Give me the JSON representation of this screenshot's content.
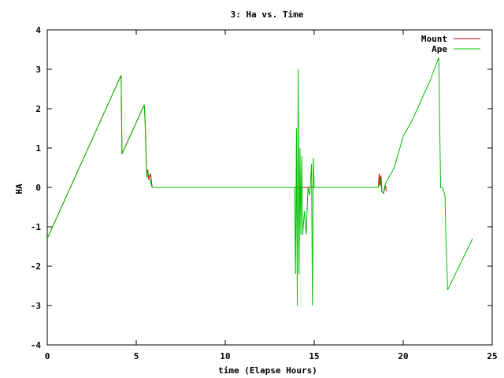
{
  "chart_data": {
    "type": "line",
    "title": "3: Ha vs. Time",
    "xlabel": "time (Elapse Hours)",
    "ylabel": "HA",
    "xlim": [
      0,
      25
    ],
    "ylim": [
      -4,
      4
    ],
    "xticks": [
      "0",
      "5",
      "10",
      "15",
      "20",
      "25"
    ],
    "yticks": [
      "-4",
      "-3",
      "-2",
      "-1",
      "0",
      "1",
      "2",
      "3",
      "4"
    ],
    "grid": false,
    "legend_position": "top-right",
    "series": [
      {
        "name": "Mount",
        "color": "#cc0000",
        "x": [
          0.0,
          4.15,
          4.2,
          5.45,
          5.5,
          5.55,
          5.6,
          5.65,
          5.7,
          5.8,
          5.9,
          13.9,
          18.6,
          18.65,
          18.7,
          18.75,
          18.8,
          18.9,
          19.0,
          19.05
        ],
        "y": [
          -1.3,
          2.85,
          0.85,
          2.1,
          1.7,
          0.9,
          0.25,
          0.45,
          0.2,
          0.35,
          0.0,
          0.0,
          0.0,
          0.35,
          0.05,
          0.3,
          -0.1,
          -0.15,
          0.05,
          -0.1
        ]
      },
      {
        "name": "Ape",
        "color": "#00c000",
        "x": [
          0.0,
          4.15,
          4.2,
          5.45,
          5.5,
          5.55,
          5.6,
          5.65,
          5.75,
          5.9,
          13.9,
          13.95,
          14.0,
          14.05,
          14.1,
          14.15,
          14.2,
          14.25,
          14.3,
          14.35,
          14.45,
          14.55,
          14.65,
          14.75,
          14.85,
          14.9,
          14.95,
          15.0,
          18.6,
          18.7,
          18.8,
          18.9,
          19.0,
          19.5,
          20.0,
          20.5,
          21.0,
          21.5,
          22.0,
          22.1,
          22.2,
          22.35,
          22.4,
          22.5,
          23.9
        ],
        "y": [
          -1.3,
          2.85,
          0.85,
          2.1,
          1.6,
          0.8,
          0.25,
          0.4,
          0.2,
          0.0,
          0.0,
          -2.2,
          1.5,
          -3.0,
          3.0,
          -2.2,
          1.0,
          -1.2,
          0.8,
          -1.2,
          -0.6,
          -1.2,
          0.0,
          -0.2,
          0.6,
          -3.0,
          0.75,
          0.0,
          0.0,
          0.25,
          -0.1,
          -0.15,
          0.1,
          0.5,
          1.3,
          1.7,
          2.2,
          2.7,
          3.3,
          0.0,
          0.0,
          -0.2,
          -1.3,
          -2.6,
          -1.3
        ]
      }
    ]
  }
}
